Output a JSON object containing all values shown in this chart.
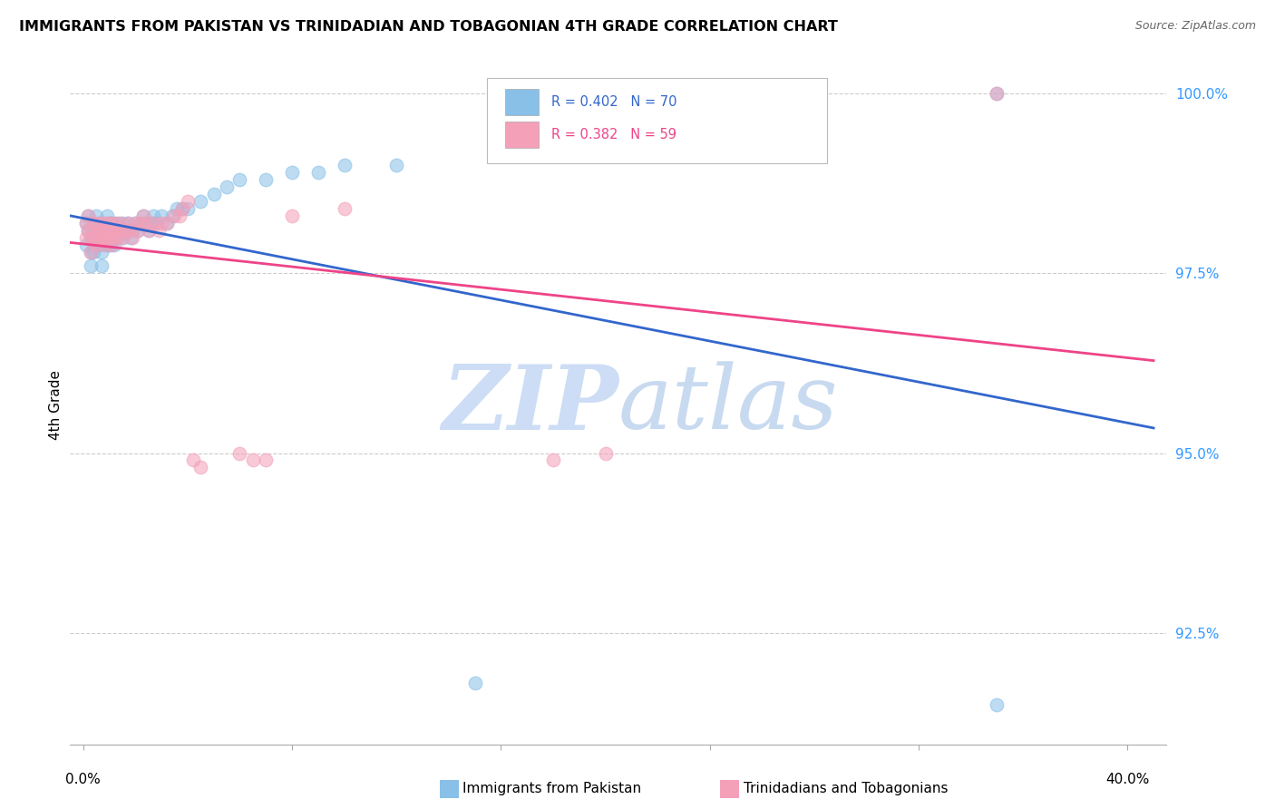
{
  "title": "IMMIGRANTS FROM PAKISTAN VS TRINIDADIAN AND TOBAGONIAN 4TH GRADE CORRELATION CHART",
  "source": "Source: ZipAtlas.com",
  "ylabel": "4th Grade",
  "blue_color": "#88c0e8",
  "pink_color": "#f4a0b8",
  "blue_line_color": "#3366cc",
  "pink_line_color": "#ee4488",
  "legend_label_blue": "Immigrants from Pakistan",
  "legend_label_pink": "Trinidadians and Tobagonians",
  "watermark": "ZIPatlas",
  "watermark_zip_color": "#ccddf5",
  "watermark_atlas_color": "#c8daf0",
  "xlim": [
    0.0,
    0.4
  ],
  "ylim": [
    0.91,
    1.004
  ],
  "ytick_vals": [
    0.925,
    0.95,
    0.975,
    1.0
  ],
  "ytick_labels": [
    "92.5%",
    "95.0%",
    "97.5%",
    "100.0%"
  ],
  "blue_r": 0.402,
  "blue_n": 70,
  "pink_r": 0.382,
  "pink_n": 59,
  "blue_x": [
    0.001,
    0.001,
    0.002,
    0.002,
    0.003,
    0.003,
    0.003,
    0.004,
    0.004,
    0.004,
    0.005,
    0.005,
    0.005,
    0.006,
    0.006,
    0.006,
    0.007,
    0.007,
    0.007,
    0.007,
    0.008,
    0.008,
    0.008,
    0.009,
    0.009,
    0.009,
    0.01,
    0.01,
    0.01,
    0.01,
    0.011,
    0.011,
    0.012,
    0.012,
    0.013,
    0.013,
    0.014,
    0.015,
    0.015,
    0.016,
    0.017,
    0.018,
    0.019,
    0.02,
    0.021,
    0.022,
    0.023,
    0.024,
    0.025,
    0.026,
    0.027,
    0.028,
    0.03,
    0.032,
    0.034,
    0.036,
    0.038,
    0.04,
    0.045,
    0.05,
    0.055,
    0.06,
    0.07,
    0.08,
    0.09,
    0.1,
    0.12,
    0.15,
    0.35,
    0.35
  ],
  "blue_y": [
    0.982,
    0.979,
    0.981,
    0.983,
    0.98,
    0.978,
    0.976,
    0.982,
    0.98,
    0.978,
    0.981,
    0.983,
    0.98,
    0.979,
    0.982,
    0.98,
    0.981,
    0.98,
    0.978,
    0.976,
    0.981,
    0.982,
    0.98,
    0.979,
    0.981,
    0.983,
    0.98,
    0.982,
    0.981,
    0.979,
    0.982,
    0.98,
    0.981,
    0.979,
    0.982,
    0.98,
    0.981,
    0.982,
    0.98,
    0.981,
    0.982,
    0.98,
    0.981,
    0.982,
    0.981,
    0.982,
    0.983,
    0.982,
    0.981,
    0.982,
    0.983,
    0.982,
    0.983,
    0.982,
    0.983,
    0.984,
    0.984,
    0.984,
    0.985,
    0.986,
    0.987,
    0.988,
    0.988,
    0.989,
    0.989,
    0.99,
    0.99,
    0.918,
    0.915,
    1.0
  ],
  "pink_x": [
    0.001,
    0.001,
    0.002,
    0.002,
    0.003,
    0.003,
    0.004,
    0.004,
    0.005,
    0.005,
    0.006,
    0.006,
    0.007,
    0.007,
    0.007,
    0.008,
    0.008,
    0.009,
    0.009,
    0.01,
    0.01,
    0.01,
    0.011,
    0.011,
    0.012,
    0.012,
    0.013,
    0.013,
    0.014,
    0.015,
    0.015,
    0.016,
    0.017,
    0.018,
    0.019,
    0.02,
    0.021,
    0.022,
    0.023,
    0.024,
    0.025,
    0.027,
    0.029,
    0.03,
    0.032,
    0.035,
    0.037,
    0.038,
    0.04,
    0.042,
    0.045,
    0.06,
    0.065,
    0.07,
    0.08,
    0.1,
    0.18,
    0.2,
    0.35
  ],
  "pink_y": [
    0.982,
    0.98,
    0.981,
    0.983,
    0.98,
    0.978,
    0.982,
    0.98,
    0.981,
    0.979,
    0.98,
    0.982,
    0.981,
    0.98,
    0.982,
    0.979,
    0.981,
    0.98,
    0.982,
    0.981,
    0.98,
    0.982,
    0.979,
    0.981,
    0.98,
    0.982,
    0.981,
    0.98,
    0.982,
    0.981,
    0.98,
    0.981,
    0.982,
    0.981,
    0.98,
    0.982,
    0.981,
    0.982,
    0.983,
    0.982,
    0.981,
    0.982,
    0.981,
    0.982,
    0.982,
    0.983,
    0.983,
    0.984,
    0.985,
    0.949,
    0.948,
    0.95,
    0.949,
    0.949,
    0.983,
    0.984,
    0.949,
    0.95,
    1.0
  ]
}
